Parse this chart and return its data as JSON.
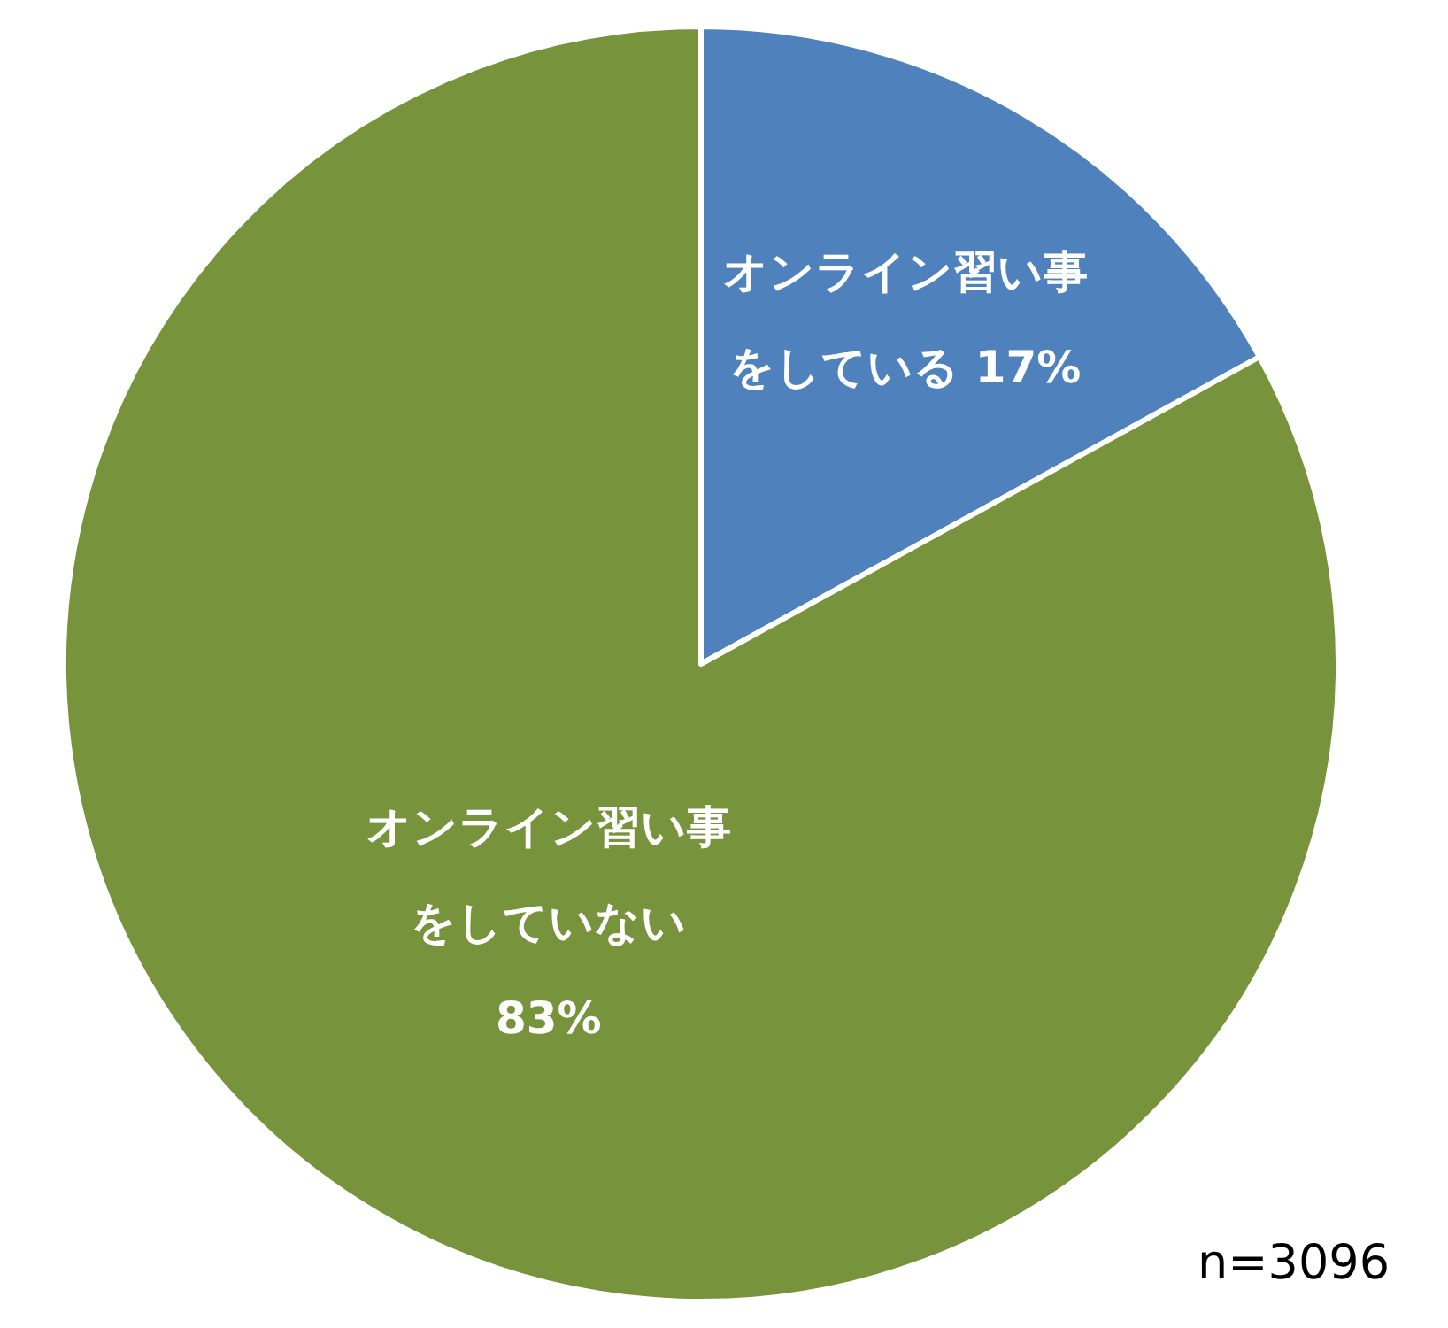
{
  "chart_data": {
    "type": "pie",
    "categories": [
      "オンライン習い事をしている",
      "オンライン習い事をしていない"
    ],
    "values": [
      17,
      83
    ],
    "value_labels": [
      "17%",
      "83%"
    ],
    "colors": [
      "#4f81bd",
      "#77933c"
    ],
    "annotations": [
      "n=3096"
    ]
  }
}
